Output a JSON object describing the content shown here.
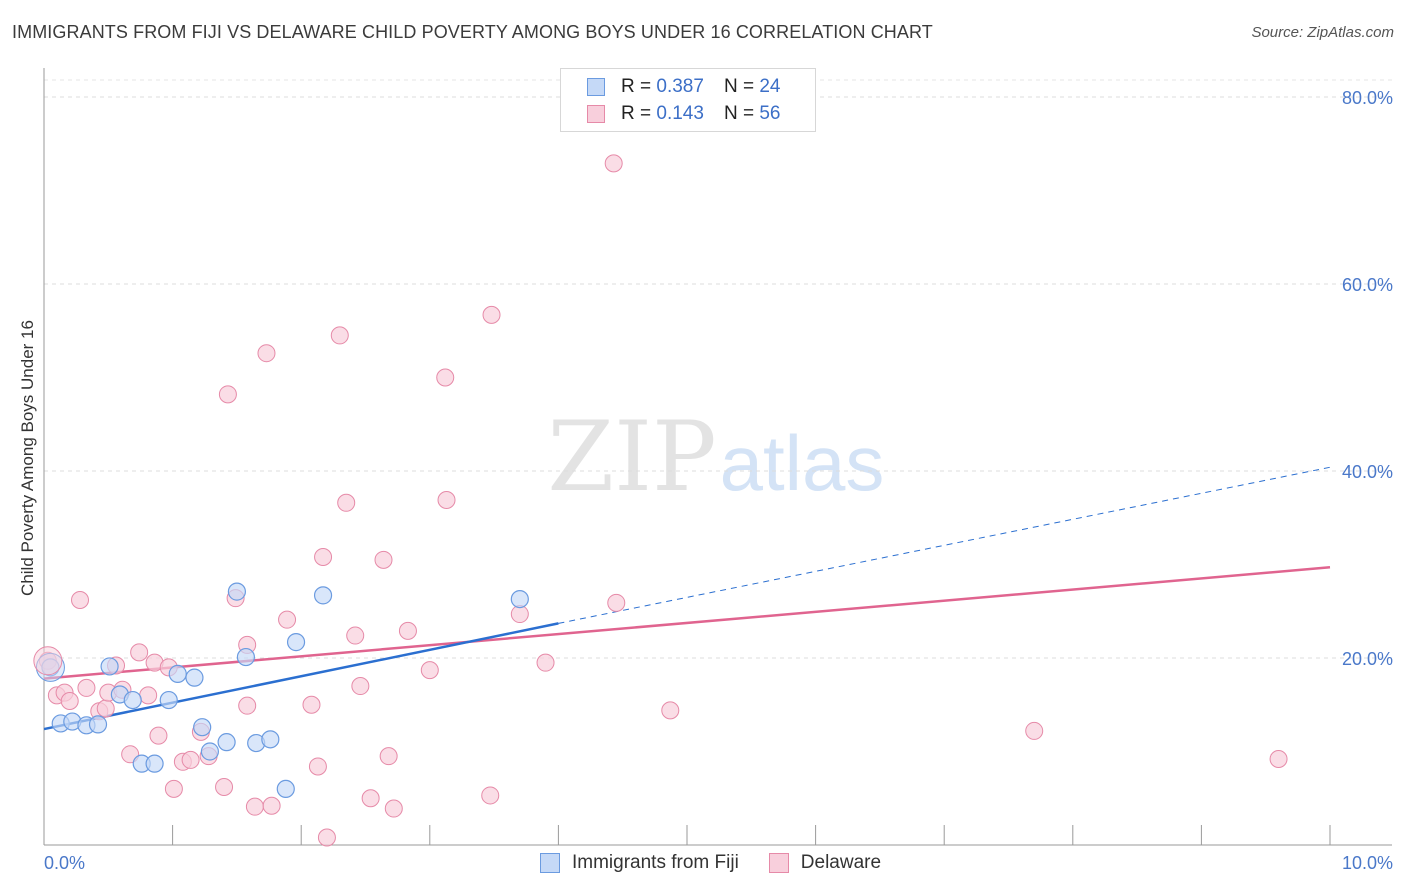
{
  "title": "IMMIGRANTS FROM FIJI VS DELAWARE CHILD POVERTY AMONG BOYS UNDER 16 CORRELATION CHART",
  "source": "Source: ZipAtlas.com",
  "watermark": {
    "zip": "ZIP",
    "atlas": "atlas"
  },
  "legend": {
    "rows": [
      {
        "r_label": "R =",
        "r_value": "0.387",
        "n_label": "N =",
        "n_value": "24"
      },
      {
        "r_label": "R =",
        "r_value": "0.143",
        "n_label": "N =",
        "n_value": "56"
      }
    ]
  },
  "bottom_legend": [
    "Immigrants from Fiji",
    "Delaware"
  ],
  "chart_data": {
    "type": "scatter",
    "title": "IMMIGRANTS FROM FIJI VS DELAWARE CHILD POVERTY AMONG BOYS UNDER 16 CORRELATION CHART",
    "xlabel": "",
    "ylabel": "Child Poverty Among Boys Under 16",
    "xlim": [
      0,
      10
    ],
    "ylim": [
      0,
      80
    ],
    "x_tick_labels": [
      "0.0%",
      "10.0%"
    ],
    "y_ticks": [
      20,
      40,
      60,
      80
    ],
    "y_tick_labels": [
      "20.0%",
      "40.0%",
      "60.0%",
      "80.0%"
    ],
    "grid": "horizontal dashed",
    "colors": {
      "fiji": "#6b9be0",
      "fiji_fill": "#c5d9f7",
      "delaware": "#e68aa8",
      "delaware_fill": "#f8cfdc",
      "fiji_line": "#2b6fd0",
      "delaware_line": "#e0648f"
    },
    "series": [
      {
        "name": "Immigrants from Fiji",
        "r": 0.387,
        "n": 24,
        "trend": {
          "x0": 0,
          "y0": 12.4,
          "x1": 4.0,
          "y1": 23.7,
          "dash_to_x": 10,
          "dash_to_y": 40.4
        },
        "points": [
          [
            0.05,
            19.0
          ],
          [
            0.13,
            13.0
          ],
          [
            0.22,
            13.2
          ],
          [
            0.33,
            12.8
          ],
          [
            0.42,
            12.9
          ],
          [
            0.51,
            19.1
          ],
          [
            0.59,
            16.1
          ],
          [
            0.69,
            15.5
          ],
          [
            0.76,
            8.7
          ],
          [
            0.86,
            8.7
          ],
          [
            0.97,
            15.5
          ],
          [
            1.04,
            18.3
          ],
          [
            1.17,
            17.9
          ],
          [
            1.23,
            12.6
          ],
          [
            1.29,
            10.0
          ],
          [
            1.42,
            11.0
          ],
          [
            1.5,
            27.1
          ],
          [
            1.57,
            20.1
          ],
          [
            1.65,
            10.9
          ],
          [
            1.76,
            11.3
          ],
          [
            1.88,
            6.0
          ],
          [
            1.96,
            21.7
          ],
          [
            2.17,
            26.7
          ],
          [
            3.7,
            26.3
          ]
        ]
      },
      {
        "name": "Delaware",
        "r": 0.143,
        "n": 56,
        "trend": {
          "x0": 0,
          "y0": 17.8,
          "x1": 10,
          "y1": 29.7
        },
        "points": [
          [
            0.03,
            19.7
          ],
          [
            0.1,
            16.0
          ],
          [
            0.16,
            16.3
          ],
          [
            0.2,
            15.4
          ],
          [
            0.28,
            26.2
          ],
          [
            0.33,
            16.8
          ],
          [
            0.43,
            14.3
          ],
          [
            0.48,
            14.6
          ],
          [
            0.5,
            16.3
          ],
          [
            0.56,
            19.2
          ],
          [
            0.61,
            16.6
          ],
          [
            0.67,
            9.7
          ],
          [
            0.74,
            20.6
          ],
          [
            0.81,
            16.0
          ],
          [
            0.86,
            19.5
          ],
          [
            0.89,
            11.7
          ],
          [
            0.97,
            19.0
          ],
          [
            1.01,
            6.0
          ],
          [
            1.08,
            8.9
          ],
          [
            1.14,
            9.1
          ],
          [
            1.22,
            12.1
          ],
          [
            1.28,
            9.5
          ],
          [
            1.4,
            6.2
          ],
          [
            1.43,
            48.2
          ],
          [
            1.49,
            26.4
          ],
          [
            1.58,
            14.9
          ],
          [
            1.58,
            21.4
          ],
          [
            1.64,
            4.1
          ],
          [
            1.73,
            52.6
          ],
          [
            1.77,
            4.2
          ],
          [
            1.89,
            24.1
          ],
          [
            2.08,
            15.0
          ],
          [
            2.13,
            8.4
          ],
          [
            2.17,
            30.8
          ],
          [
            2.2,
            0.8
          ],
          [
            2.3,
            54.5
          ],
          [
            2.35,
            36.6
          ],
          [
            2.42,
            22.4
          ],
          [
            2.46,
            17.0
          ],
          [
            2.54,
            5.0
          ],
          [
            2.64,
            30.5
          ],
          [
            2.68,
            9.5
          ],
          [
            2.72,
            3.9
          ],
          [
            2.83,
            22.9
          ],
          [
            3.0,
            18.7
          ],
          [
            3.12,
            50.0
          ],
          [
            3.13,
            36.9
          ],
          [
            3.47,
            5.3
          ],
          [
            3.48,
            56.7
          ],
          [
            3.7,
            24.7
          ],
          [
            3.9,
            19.5
          ],
          [
            4.45,
            25.9
          ],
          [
            4.43,
            72.9
          ],
          [
            4.87,
            14.4
          ],
          [
            7.7,
            12.2
          ],
          [
            9.6,
            9.2
          ]
        ]
      }
    ]
  }
}
